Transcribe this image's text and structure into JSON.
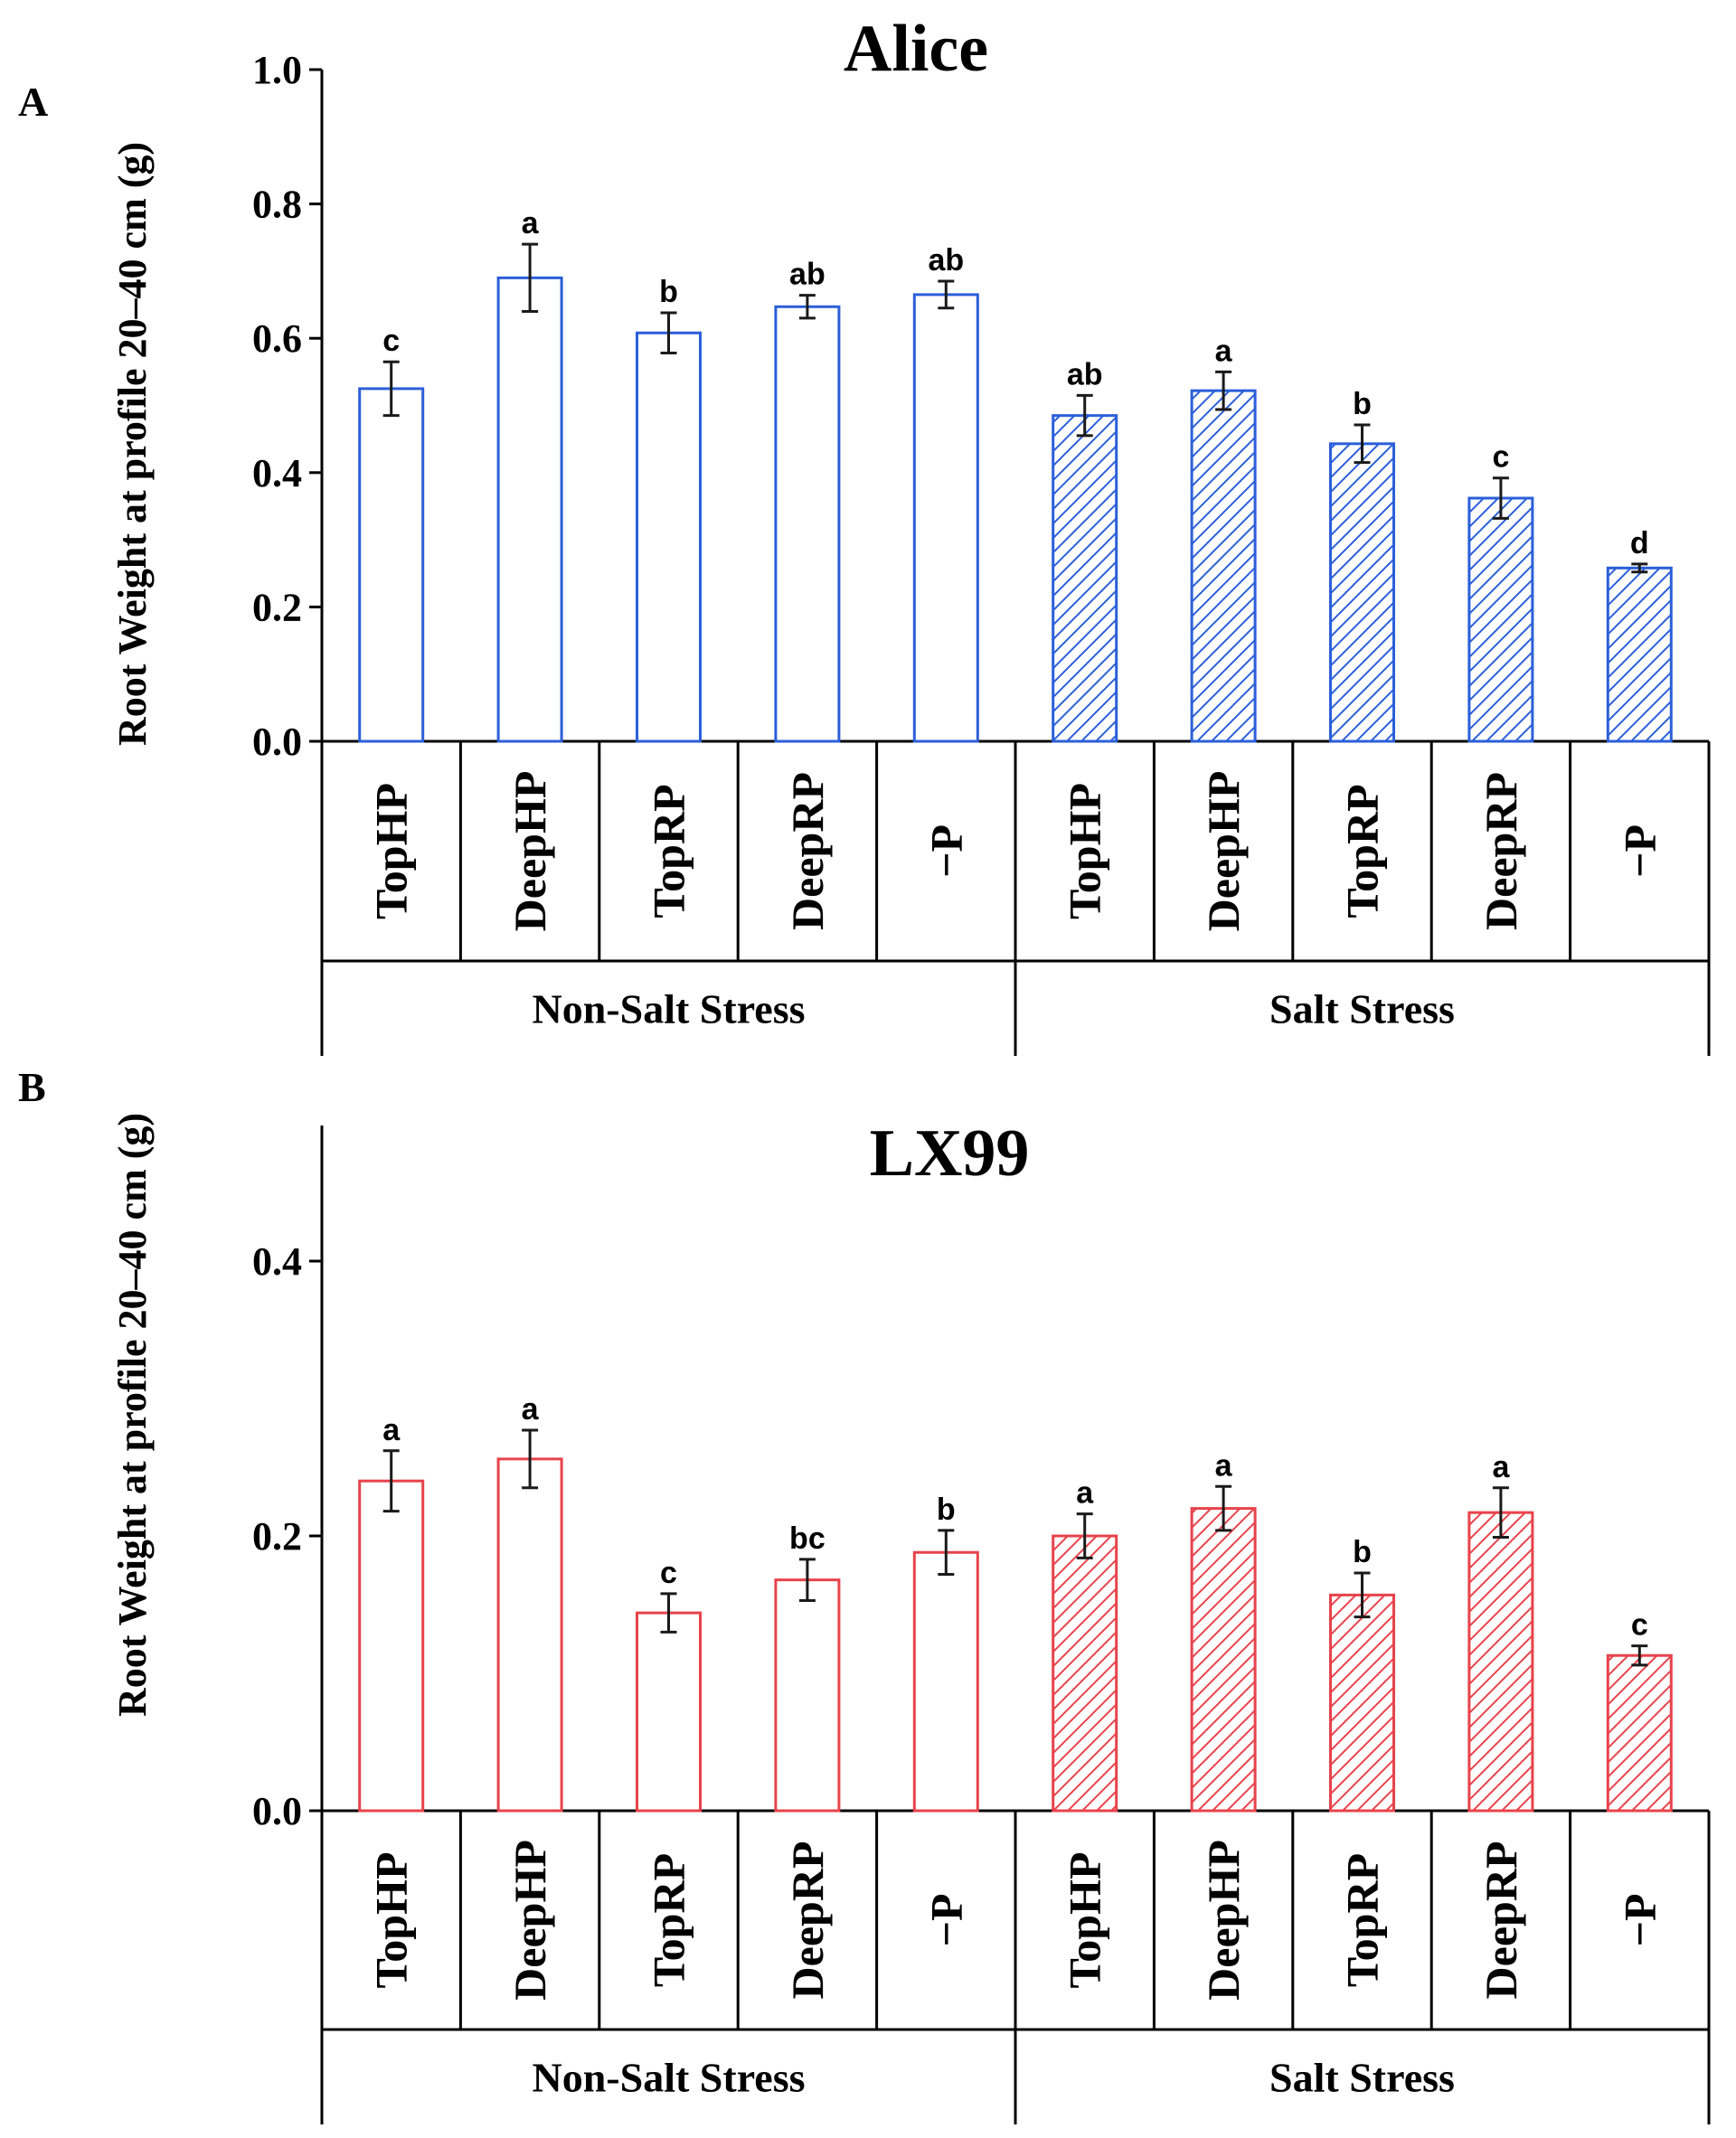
{
  "figure": {
    "colors": {
      "axis": "#000000",
      "error_bar": "#1a1a1a"
    }
  },
  "chart_data": [
    {
      "type": "bar",
      "panel_label": "A",
      "title": "Alice",
      "ylabel": "Root Weight at profile 20–40 cm (g)",
      "xlabel": "",
      "ylim": [
        0,
        1.0
      ],
      "yticks": [
        "0.0",
        "0.2",
        "0.4",
        "0.6",
        "0.8",
        "1.0"
      ],
      "grid": false,
      "color": "#2b5fd9",
      "categories": [
        "TopHP",
        "DeepHP",
        "TopRP",
        "DeepRP",
        "−P",
        "TopHP",
        "DeepHP",
        "TopRP",
        "DeepRP",
        "−P"
      ],
      "groups": [
        {
          "name": "Non-Salt Stress",
          "hatched": false
        },
        {
          "name": "Salt Stress",
          "hatched": true
        }
      ],
      "values": [
        0.525,
        0.69,
        0.608,
        0.647,
        0.665,
        0.485,
        0.522,
        0.443,
        0.362,
        0.258
      ],
      "errors": [
        0.04,
        0.05,
        0.03,
        0.017,
        0.02,
        0.03,
        0.028,
        0.028,
        0.03,
        0.006
      ],
      "significance": [
        "c",
        "a",
        "b",
        "ab",
        "ab",
        "ab",
        "a",
        "b",
        "c",
        "d"
      ]
    },
    {
      "type": "bar",
      "panel_label": "B",
      "title": "LX99",
      "ylabel": "Root Weight at profile 20–40 cm (g)",
      "xlabel": "",
      "ylim": [
        0,
        0.5
      ],
      "yticks": [
        "0.0",
        "0.2",
        "0.4"
      ],
      "grid": false,
      "color": "#e8434b",
      "categories": [
        "TopHP",
        "DeepHP",
        "TopRP",
        "DeepRP",
        "−P",
        "TopHP",
        "DeepHP",
        "TopRP",
        "DeepRP",
        "−P"
      ],
      "groups": [
        {
          "name": "Non-Salt Stress",
          "hatched": false
        },
        {
          "name": "Salt Stress",
          "hatched": true
        }
      ],
      "values": [
        0.24,
        0.256,
        0.144,
        0.168,
        0.188,
        0.2,
        0.22,
        0.157,
        0.217,
        0.113
      ],
      "errors": [
        0.022,
        0.021,
        0.014,
        0.015,
        0.016,
        0.016,
        0.016,
        0.016,
        0.018,
        0.007
      ],
      "significance": [
        "a",
        "a",
        "c",
        "bc",
        "b",
        "a",
        "a",
        "b",
        "a",
        "c"
      ]
    }
  ]
}
